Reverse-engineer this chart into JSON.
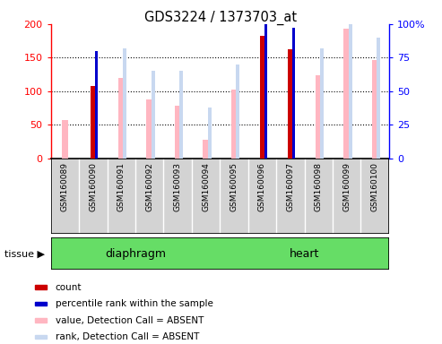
{
  "title": "GDS3224 / 1373703_at",
  "samples": [
    "GSM160089",
    "GSM160090",
    "GSM160091",
    "GSM160092",
    "GSM160093",
    "GSM160094",
    "GSM160095",
    "GSM160096",
    "GSM160097",
    "GSM160098",
    "GSM160099",
    "GSM160100"
  ],
  "count": [
    null,
    108,
    null,
    null,
    null,
    null,
    null,
    182,
    163,
    null,
    null,
    null
  ],
  "percentile_rank": [
    null,
    80,
    null,
    null,
    null,
    null,
    null,
    100,
    97,
    null,
    null,
    null
  ],
  "value_absent": [
    57,
    null,
    120,
    87,
    78,
    27,
    103,
    null,
    null,
    124,
    193,
    147
  ],
  "rank_absent": [
    null,
    null,
    82,
    65,
    65,
    38,
    70,
    null,
    null,
    82,
    103,
    90
  ],
  "tissues": [
    {
      "label": "diaphragm",
      "start": 0,
      "end": 6
    },
    {
      "label": "heart",
      "start": 6,
      "end": 12
    }
  ],
  "ylim_left": [
    0,
    200
  ],
  "ylim_right": [
    0,
    100
  ],
  "yticks_left": [
    0,
    50,
    100,
    150,
    200
  ],
  "yticks_right": [
    0,
    25,
    50,
    75,
    100
  ],
  "ytick_labels_right": [
    "0",
    "25",
    "50",
    "75",
    "100%"
  ],
  "ytick_labels_left": [
    "0",
    "50",
    "100",
    "150",
    "200"
  ],
  "color_count": "#CC0000",
  "color_percentile": "#0000CC",
  "color_value_absent": "#FFB6C1",
  "color_rank_absent": "#C8D8F0",
  "bar_bg": "#D3D3D3",
  "tissue_color": "#66DD66",
  "plot_bg": "#FFFFFF",
  "legend_items": [
    {
      "color": "#CC0000",
      "label": "count"
    },
    {
      "color": "#0000CC",
      "label": "percentile rank within the sample"
    },
    {
      "color": "#FFB6C1",
      "label": "value, Detection Call = ABSENT"
    },
    {
      "color": "#C8D8F0",
      "label": "rank, Detection Call = ABSENT"
    }
  ]
}
